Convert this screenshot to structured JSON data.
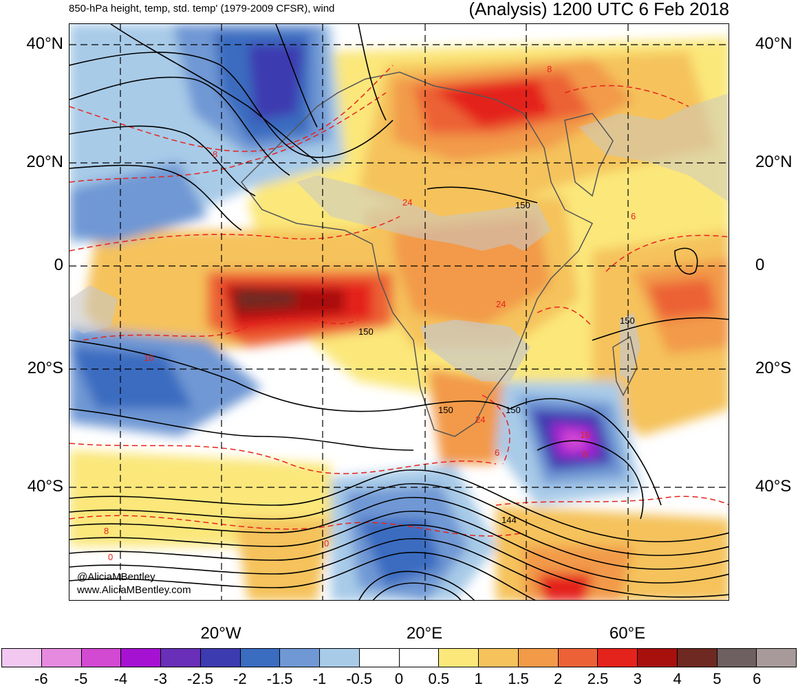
{
  "header": {
    "left_title": "850-hPa height, temp, std. temp' (1979-2009 CFSR), wind",
    "right_title": "(Analysis) 1200 UTC 6 Feb 2018"
  },
  "axes": {
    "lat_labels": [
      "40°N",
      "20°N",
      "0",
      "20°S",
      "40°S"
    ],
    "lon_labels": [
      "20°W",
      "20°E",
      "60°E"
    ]
  },
  "contour_labels": {
    "height": [
      "150",
      "150",
      "150",
      "150",
      "150",
      "144"
    ],
    "temperature": [
      "8",
      "16",
      "24",
      "24",
      "16",
      "6",
      "24",
      "6",
      "8",
      "0",
      "0",
      "8",
      "16",
      "6"
    ]
  },
  "watermark": {
    "line1": "@AliciaMBentley",
    "line2": "www.AliciaMBentley.com"
  },
  "colorbar": {
    "labels": [
      "-6",
      "-5",
      "-4",
      "-3",
      "-2.5",
      "-2",
      "-1.5",
      "-1",
      "-0.5",
      "0",
      "0.5",
      "1",
      "1.5",
      "2",
      "2.5",
      "3",
      "4",
      "5",
      "6"
    ],
    "colors": [
      "#f2c8f0",
      "#e68ae0",
      "#d24ad2",
      "#a512d2",
      "#6a2fb8",
      "#3d3bb0",
      "#3a6cc0",
      "#6f98d4",
      "#a8cbe8",
      "#ffffff",
      "#ffffff",
      "#fbe77a",
      "#f5c25c",
      "#f29a48",
      "#ec6236",
      "#e4231c",
      "#a8100e",
      "#6e2a22",
      "#6e6060",
      "#a89a9a"
    ]
  },
  "map": {
    "land_color": "#c8c8c8",
    "height_contour_color": "#000000",
    "temp_contour_color": "#e8221c"
  }
}
